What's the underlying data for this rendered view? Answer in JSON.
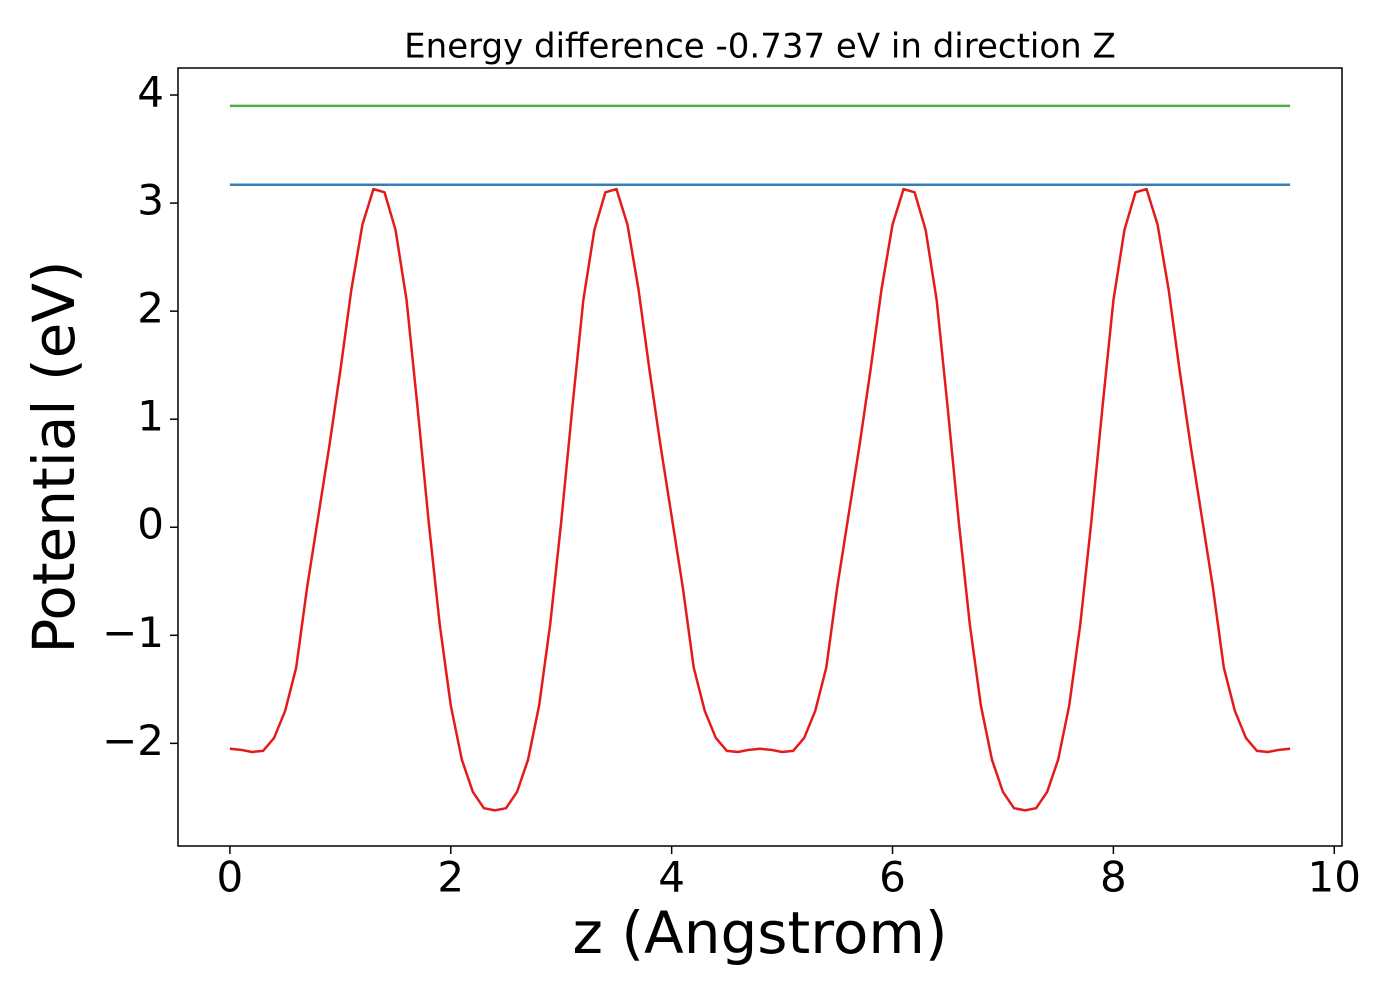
{
  "chart_data": {
    "type": "line",
    "title": "Energy difference -0.737 eV in direction Z",
    "xlabel": "z (Angstrom)",
    "ylabel": "Potential (eV)",
    "xlim": [
      -0.47,
      10.07
    ],
    "ylim": [
      -2.95,
      4.25
    ],
    "xticks": [
      0,
      2,
      4,
      6,
      8,
      10
    ],
    "yticks": [
      {
        "value": -2,
        "label": "−2"
      },
      {
        "value": -1,
        "label": "−1"
      },
      0,
      1,
      2,
      3,
      4
    ],
    "grid": false,
    "series": [
      {
        "color": "#e41a1c",
        "x": [
          0,
          0.1,
          0.2,
          0.3,
          0.4,
          0.5,
          0.6,
          0.7,
          0.8,
          0.9,
          1,
          1.1,
          1.2,
          1.3,
          1.4,
          1.5,
          1.6,
          1.7,
          1.8,
          1.9,
          2,
          2.1,
          2.2,
          2.3,
          2.4,
          2.5,
          2.6,
          2.7,
          2.8,
          2.9,
          3,
          3.1,
          3.2,
          3.3,
          3.4,
          3.5,
          3.6,
          3.7,
          3.8,
          3.9,
          4,
          4.1,
          4.2,
          4.3,
          4.4,
          4.5,
          4.6,
          4.7,
          4.8,
          4.9,
          5,
          5.1,
          5.2,
          5.3,
          5.4,
          5.5,
          5.6,
          5.7,
          5.8,
          5.9,
          6,
          6.1,
          6.2,
          6.3,
          6.4,
          6.5,
          6.6,
          6.7,
          6.8,
          6.9,
          7,
          7.1,
          7.2,
          7.3,
          7.4,
          7.5,
          7.6,
          7.7,
          7.8,
          7.9,
          8,
          8.1,
          8.2,
          8.3,
          8.4,
          8.5,
          8.6,
          8.7,
          8.8,
          8.9,
          9,
          9.1,
          9.2,
          9.3,
          9.4,
          9.5,
          9.6
        ],
        "values": [
          -2.05,
          -2.06,
          -2.08,
          -2.07,
          -1.95,
          -1.7,
          -1.3,
          -0.55,
          0.1,
          0.75,
          1.45,
          2.2,
          2.8,
          3.13,
          3.1,
          2.75,
          2.1,
          1.1,
          0.05,
          -0.9,
          -1.65,
          -2.15,
          -2.45,
          -2.6,
          -2.62,
          -2.6,
          -2.45,
          -2.15,
          -1.65,
          -0.9,
          0.05,
          1.1,
          2.1,
          2.75,
          3.1,
          3.13,
          2.8,
          2.2,
          1.45,
          0.75,
          0.1,
          -0.55,
          -1.3,
          -1.7,
          -1.95,
          -2.07,
          -2.08,
          -2.06,
          -2.05,
          -2.06,
          -2.08,
          -2.07,
          -1.95,
          -1.7,
          -1.3,
          -0.55,
          0.1,
          0.75,
          1.45,
          2.2,
          2.8,
          3.13,
          3.1,
          2.75,
          2.1,
          1.1,
          0.05,
          -0.9,
          -1.65,
          -2.15,
          -2.45,
          -2.6,
          -2.62,
          -2.6,
          -2.45,
          -2.15,
          -1.65,
          -0.9,
          0.05,
          1.1,
          2.1,
          2.75,
          3.1,
          3.13,
          2.8,
          2.2,
          1.45,
          0.75,
          0.1,
          -0.55,
          -1.3,
          -1.7,
          -1.95,
          -2.07,
          -2.08,
          -2.06,
          -2.05
        ]
      },
      {
        "color": "#377eb8",
        "x": [
          0,
          9.6
        ],
        "values": [
          3.17,
          3.17
        ]
      },
      {
        "color": "#4daf4a",
        "x": [
          0,
          9.6
        ],
        "values": [
          3.9,
          3.9
        ]
      }
    ]
  }
}
